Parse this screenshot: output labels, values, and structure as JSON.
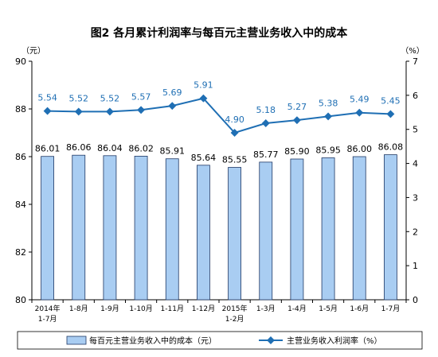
{
  "chart_data": {
    "type": "bar+line",
    "title": "图2  各月累计利润率与每百元主营业务收入中的成本",
    "left_unit": "（元）",
    "right_unit": "（%）",
    "categories": [
      [
        "2014年",
        "1-7月"
      ],
      [
        "1-8月"
      ],
      [
        "1-9月"
      ],
      [
        "1-10月"
      ],
      [
        "1-11月"
      ],
      [
        "1-12月"
      ],
      [
        "2015年",
        "1-2月"
      ],
      [
        "1-3月"
      ],
      [
        "1-4月"
      ],
      [
        "1-5月"
      ],
      [
        "1-6月"
      ],
      [
        "1-7月"
      ]
    ],
    "bar_series": {
      "name": "每百元主营业务收入中的成本（元）",
      "values": [
        86.01,
        86.06,
        86.04,
        86.02,
        85.91,
        85.64,
        85.55,
        85.77,
        85.9,
        85.95,
        86.0,
        86.08
      ],
      "labels": [
        "86.01",
        "86.06",
        "86.04",
        "86.02",
        "85.91",
        "85.64",
        "85.55",
        "85.77",
        "85.90",
        "85.95",
        "86.00",
        "86.08"
      ],
      "color": "#A9CDF2",
      "border": "#1F3864"
    },
    "line_series": {
      "name": "主营业务收入利润率（%）",
      "values": [
        5.54,
        5.52,
        5.52,
        5.57,
        5.69,
        5.91,
        4.9,
        5.18,
        5.27,
        5.38,
        5.49,
        5.45
      ],
      "labels": [
        "5.54",
        "5.52",
        "5.52",
        "5.57",
        "5.69",
        "5.91",
        "4.90",
        "5.18",
        "5.27",
        "5.38",
        "5.49",
        "5.45"
      ],
      "color": "#1F6FB4"
    },
    "left_axis": {
      "ylim": [
        80,
        90
      ],
      "ticks": [
        "80",
        "82",
        "84",
        "86",
        "88",
        "90"
      ]
    },
    "right_axis": {
      "ylim": [
        0,
        7
      ],
      "ticks": [
        "0",
        "1",
        "2",
        "3",
        "4",
        "5",
        "6",
        "7"
      ]
    },
    "legend_position": "bottom",
    "grid": false
  }
}
